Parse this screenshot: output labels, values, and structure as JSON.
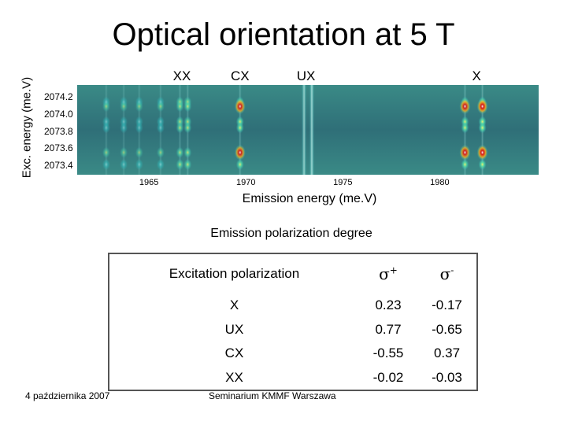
{
  "slide": {
    "footer_left": "4 października 2007",
    "footer_center": "Seminarium KMMF Warszawa"
  },
  "chart_data": {
    "type": "heatmap",
    "title": "Optical orientation at 5 T",
    "xlabel": "Emission energy (me.V)",
    "ylabel": "Exc. energy (me.V)",
    "xlim": [
      1961.3,
      1985.1
    ],
    "ylim": [
      2073.3,
      2074.35
    ],
    "x_ticks": [
      "1965",
      "1970",
      "1975",
      "1980"
    ],
    "x_tick_values": [
      1965,
      1970,
      1975,
      1980
    ],
    "y_ticks": [
      "2074.2",
      "2074.0",
      "2073.8",
      "2073.6",
      "2073.4"
    ],
    "y_tick_values": [
      2074.2,
      2074.0,
      2073.8,
      2073.6,
      2073.4
    ],
    "peak_labels": [
      {
        "text": "XX",
        "x": 1966.7
      },
      {
        "text": "CX",
        "x": 1969.7
      },
      {
        "text": "UX",
        "x": 1973.1
      },
      {
        "text": "X",
        "x": 1981.9
      }
    ],
    "colormap": {
      "low": "#1f3e8c",
      "mid": "#2fc4c4",
      "high": "#e01212"
    },
    "rows": [
      {
        "y": 2074.15,
        "hot": false
      },
      {
        "y": 2074.1,
        "hot": true
      },
      {
        "y": 2073.92,
        "hot": false
      },
      {
        "y": 2073.85,
        "hot": false
      },
      {
        "y": 2073.56,
        "hot": true
      },
      {
        "y": 2073.42,
        "hot": false
      }
    ],
    "lines": [
      {
        "x": 1962.8,
        "strength": 0.35
      },
      {
        "x": 1963.7,
        "strength": 0.3
      },
      {
        "x": 1964.5,
        "strength": 0.3
      },
      {
        "x": 1965.6,
        "strength": 0.35
      },
      {
        "x": 1966.6,
        "strength": 0.6
      },
      {
        "x": 1967.0,
        "strength": 0.65
      },
      {
        "x": 1969.7,
        "strength": 0.85
      },
      {
        "x": 1973.0,
        "strength": 0.55
      },
      {
        "x": 1973.4,
        "strength": 0.7
      },
      {
        "x": 1981.3,
        "strength": 0.9
      },
      {
        "x": 1982.2,
        "strength": 1.0
      }
    ],
    "table": {
      "title": "Emission polarization degree",
      "header": [
        "Excitation polarization",
        "σ+",
        "σ-"
      ],
      "rows": [
        {
          "label": "X",
          "sigma_plus": "0.23",
          "sigma_minus": "-0.17"
        },
        {
          "label": "UX",
          "sigma_plus": "0.77",
          "sigma_minus": "-0.65"
        },
        {
          "label": "CX",
          "sigma_plus": "-0.55",
          "sigma_minus": "0.37"
        },
        {
          "label": "XX",
          "sigma_plus": "-0.02",
          "sigma_minus": "-0.03"
        }
      ]
    }
  }
}
